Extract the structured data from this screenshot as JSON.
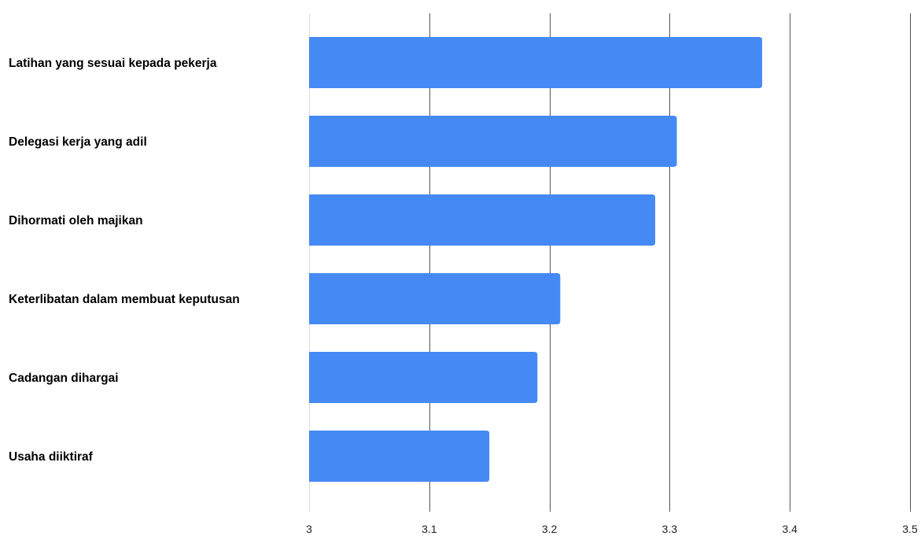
{
  "chart_data": {
    "type": "bar",
    "orientation": "horizontal",
    "categories": [
      "Latihan yang sesuai kepada pekerja",
      "Delegasi kerja yang adil",
      "Dihormati oleh majikan",
      "Keterlibatan dalam membuat keputusan",
      "Cadangan dihargai",
      "Usaha diiktiraf"
    ],
    "values": [
      3.377,
      3.306,
      3.288,
      3.209,
      3.19,
      3.15
    ],
    "title": "",
    "xlabel": "",
    "ylabel": "",
    "xlim": [
      3,
      3.5
    ],
    "x_ticks": [
      3,
      3.1,
      3.2,
      3.3,
      3.4,
      3.5
    ],
    "x_tick_labels": [
      "3",
      "3.1",
      "3.2",
      "3.3",
      "3.4",
      "3.5"
    ],
    "grid": true,
    "legend": "none",
    "colors": {
      "bar": "#4589f5",
      "gridline": "#555555",
      "label": "#000000"
    }
  }
}
